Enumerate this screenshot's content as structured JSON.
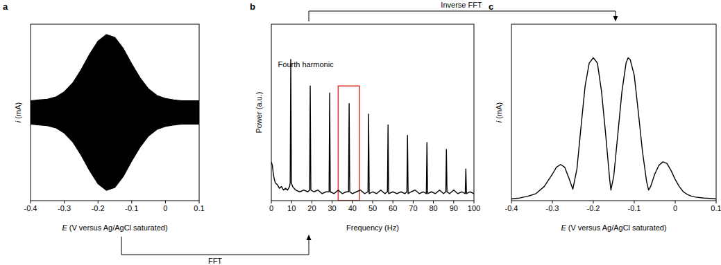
{
  "chart_data": [
    {
      "type": "band",
      "panel": "a",
      "x_label": "E (V versus Ag/AgCl saturated)",
      "y_label": "i (mA)",
      "x": [
        -0.4,
        -0.375,
        -0.35,
        -0.325,
        -0.3,
        -0.275,
        -0.25,
        -0.225,
        -0.2,
        -0.175,
        -0.15,
        -0.125,
        -0.1,
        -0.075,
        -0.05,
        -0.025,
        0,
        0.025,
        0.05,
        0.075,
        0.1
      ],
      "series": [
        {
          "color": "#000000",
          "values": [
            0.16,
            0.17,
            0.18,
            0.21,
            0.28,
            0.4,
            0.58,
            0.79,
            0.97,
            1.06,
            1.02,
            0.87,
            0.66,
            0.47,
            0.32,
            0.23,
            0.19,
            0.17,
            0.16,
            0.16,
            0.16
          ]
        },
        {
          "color": "#000000",
          "values": [
            -0.16,
            -0.17,
            -0.18,
            -0.21,
            -0.28,
            -0.4,
            -0.58,
            -0.79,
            -0.97,
            -1.06,
            -1.02,
            -0.87,
            -0.66,
            -0.47,
            -0.32,
            -0.23,
            -0.19,
            -0.17,
            -0.16,
            -0.16,
            -0.16
          ]
        }
      ],
      "xlim": [
        -0.4,
        0.1
      ],
      "xticks": [
        -0.4,
        -0.3,
        -0.2,
        -0.1,
        0,
        0.1
      ],
      "ylim": [
        -1.2,
        1.2
      ],
      "tick_labels": "x"
    },
    {
      "type": "line",
      "panel": "b",
      "x_label": "Frequency (Hz)",
      "y_label": "Power (a.u.)",
      "annotation": "Fourth harmonic",
      "highlight": {
        "x": [
          33,
          43.5
        ],
        "y": [
          0,
          65
        ],
        "color": "#e0322c"
      },
      "x": [
        0,
        0.5,
        1,
        1.5,
        2,
        3,
        4,
        5,
        6,
        7,
        8,
        9,
        9.3,
        9.6,
        9.9,
        10.5,
        12,
        14,
        16,
        18,
        18.9,
        19.2,
        19.5,
        21,
        23,
        25,
        27,
        28.5,
        28.8,
        29.1,
        31,
        33,
        35,
        37,
        38.1,
        38.4,
        38.7,
        40,
        42,
        44,
        46,
        47.7,
        48,
        48.3,
        50,
        52,
        54,
        56,
        57.3,
        57.6,
        57.9,
        60,
        62,
        64,
        66,
        66.9,
        67.2,
        67.5,
        69,
        71,
        73,
        75,
        76.5,
        76.8,
        77.1,
        79,
        81,
        83,
        85,
        86.1,
        86.4,
        86.7,
        88,
        90,
        92,
        94,
        95.7,
        96,
        96.3,
        98,
        100
      ],
      "series": [
        {
          "color": "#000000",
          "values": [
            22,
            20,
            15,
            12,
            10,
            9,
            7,
            8,
            6,
            7,
            6,
            8,
            10,
            80,
            10,
            8,
            6,
            5,
            6,
            5,
            6,
            65,
            6,
            5,
            6,
            4,
            5,
            5,
            61,
            5,
            4,
            6,
            4,
            5,
            5,
            55,
            5,
            4,
            5,
            6,
            4,
            5,
            49,
            4,
            5,
            4,
            6,
            4,
            5,
            43,
            4,
            5,
            4,
            5,
            4,
            5,
            37,
            4,
            5,
            6,
            4,
            5,
            4,
            33,
            4,
            5,
            4,
            6,
            4,
            5,
            29,
            5,
            4,
            6,
            4,
            5,
            4,
            18,
            4,
            5,
            4
          ]
        }
      ],
      "xlim": [
        0,
        100
      ],
      "xticks": [
        0,
        10,
        20,
        30,
        40,
        50,
        60,
        70,
        80,
        90,
        100
      ],
      "ylim": [
        0,
        100
      ],
      "tick_labels": "x"
    },
    {
      "type": "line",
      "panel": "c",
      "x_label": "E (V versus Ag/AgCl saturated)",
      "y_label": "i (mA)",
      "x": [
        -0.4,
        -0.38,
        -0.36,
        -0.34,
        -0.32,
        -0.3,
        -0.29,
        -0.28,
        -0.27,
        -0.26,
        -0.25,
        -0.24,
        -0.23,
        -0.22,
        -0.21,
        -0.2,
        -0.19,
        -0.18,
        -0.17,
        -0.16,
        -0.157,
        -0.15,
        -0.14,
        -0.13,
        -0.12,
        -0.115,
        -0.11,
        -0.1,
        -0.09,
        -0.08,
        -0.07,
        -0.065,
        -0.06,
        -0.05,
        -0.04,
        -0.03,
        -0.02,
        -0.01,
        0,
        0.01,
        0.02,
        0.03,
        0.04,
        0.05,
        0.07,
        0.1
      ],
      "series": [
        {
          "color": "#000000",
          "values": [
            1,
            1.5,
            2.5,
            4,
            8,
            15,
            19,
            20.5,
            19,
            13,
            6.5,
            18,
            42,
            65,
            78,
            81,
            78,
            62,
            38,
            12,
            6,
            14,
            38,
            62,
            78,
            81,
            80,
            71,
            50,
            28,
            11,
            6,
            8,
            15,
            20,
            22,
            21,
            17,
            12,
            8,
            5,
            3.5,
            2.5,
            2,
            1.5,
            1
          ]
        }
      ],
      "xlim": [
        -0.4,
        0.1
      ],
      "xticks": [
        -0.4,
        -0.3,
        -0.2,
        -0.1,
        0,
        0.1
      ],
      "ylim": [
        0,
        100
      ],
      "tick_labels": "x"
    }
  ],
  "arrows": [
    {
      "label": "FFT"
    },
    {
      "label": "Inverse FFT"
    }
  ]
}
